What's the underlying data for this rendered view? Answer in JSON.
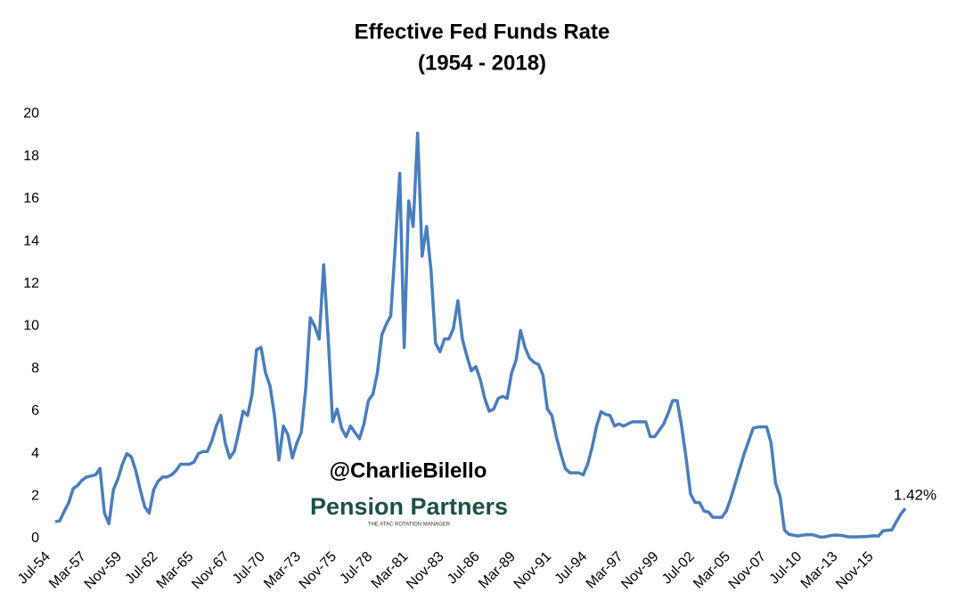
{
  "chart_data": {
    "type": "line",
    "title": "Effective Fed Funds Rate",
    "subtitle": "(1954 - 2018)",
    "annotation": "1.42%",
    "watermark": "@CharlieBilello",
    "logo": "Pension Partners",
    "logo_tagline": "THE ATAC ROTATION MANAGER",
    "categories": [
      "Jul-54",
      null,
      null,
      null,
      null,
      null,
      null,
      null,
      "Mar-57",
      null,
      null,
      null,
      null,
      null,
      null,
      null,
      "Nov-59",
      null,
      null,
      null,
      null,
      null,
      null,
      null,
      "Jul-62",
      null,
      null,
      null,
      null,
      null,
      null,
      null,
      "Mar-65",
      null,
      null,
      null,
      null,
      null,
      null,
      null,
      "Nov-67",
      null,
      null,
      null,
      null,
      null,
      null,
      null,
      "Jul-70",
      null,
      null,
      null,
      null,
      null,
      null,
      null,
      "Mar-73",
      null,
      null,
      null,
      null,
      null,
      null,
      null,
      "Nov-75",
      null,
      null,
      null,
      null,
      null,
      null,
      null,
      "Jul-78",
      null,
      null,
      null,
      null,
      null,
      null,
      null,
      "Mar-81",
      null,
      null,
      null,
      null,
      null,
      null,
      null,
      "Nov-83",
      null,
      null,
      null,
      null,
      null,
      null,
      null,
      "Jul-86",
      null,
      null,
      null,
      null,
      null,
      null,
      null,
      "Mar-89",
      null,
      null,
      null,
      null,
      null,
      null,
      null,
      "Nov-91",
      null,
      null,
      null,
      null,
      null,
      null,
      null,
      "Jul-94",
      null,
      null,
      null,
      null,
      null,
      null,
      null,
      "Mar-97",
      null,
      null,
      null,
      null,
      null,
      null,
      null,
      "Nov-99",
      null,
      null,
      null,
      null,
      null,
      null,
      null,
      "Jul-02",
      null,
      null,
      null,
      null,
      null,
      null,
      null,
      "Mar-05",
      null,
      null,
      null,
      null,
      null,
      null,
      null,
      "Nov-07",
      null,
      null,
      null,
      null,
      null,
      null,
      null,
      "Jul-10",
      null,
      null,
      null,
      null,
      null,
      null,
      null,
      "Mar-13",
      null,
      null,
      null,
      null,
      null,
      null,
      null,
      "Nov-15",
      null,
      null,
      null,
      null,
      null,
      null
    ],
    "series": [
      {
        "name": "Effective Fed Funds Rate",
        "color": "#4a7ebb",
        "values": [
          0.8,
          0.83,
          1.28,
          1.68,
          2.35,
          2.5,
          2.75,
          2.9,
          2.95,
          3.0,
          3.3,
          1.2,
          0.7,
          2.3,
          2.8,
          3.5,
          4.0,
          3.85,
          3.2,
          2.3,
          1.5,
          1.2,
          2.3,
          2.7,
          2.9,
          2.9,
          3.0,
          3.2,
          3.5,
          3.5,
          3.5,
          3.6,
          4.0,
          4.1,
          4.1,
          4.6,
          5.3,
          5.8,
          4.5,
          3.8,
          4.1,
          5.0,
          6.0,
          5.8,
          6.8,
          8.9,
          9.0,
          7.8,
          7.2,
          5.8,
          3.7,
          5.3,
          4.9,
          3.8,
          4.5,
          5.0,
          7.1,
          10.4,
          10.0,
          9.4,
          12.9,
          9.5,
          5.5,
          6.1,
          5.2,
          4.8,
          5.3,
          5.0,
          4.7,
          5.4,
          6.5,
          6.8,
          7.8,
          9.6,
          10.1,
          10.5,
          13.8,
          17.2,
          9.0,
          15.9,
          14.7,
          19.1,
          13.3,
          14.7,
          12.6,
          9.2,
          8.8,
          9.4,
          9.4,
          9.9,
          11.2,
          9.4,
          8.6,
          7.9,
          8.1,
          7.5,
          6.6,
          6.0,
          6.1,
          6.6,
          6.7,
          6.6,
          7.8,
          8.4,
          9.8,
          9.0,
          8.5,
          8.3,
          8.2,
          7.7,
          6.1,
          5.8,
          4.8,
          4.0,
          3.3,
          3.1,
          3.1,
          3.1,
          3.0,
          3.5,
          4.3,
          5.3,
          5.98,
          5.85,
          5.8,
          5.3,
          5.4,
          5.3,
          5.4,
          5.5,
          5.5,
          5.5,
          5.5,
          4.8,
          4.8,
          5.1,
          5.4,
          5.9,
          6.5,
          6.5,
          5.3,
          3.8,
          2.1,
          1.7,
          1.7,
          1.3,
          1.25,
          1.0,
          1.0,
          1.0,
          1.3,
          1.9,
          2.6,
          3.3,
          4.0,
          4.6,
          5.2,
          5.25,
          5.26,
          5.26,
          4.5,
          2.6,
          2.0,
          0.4,
          0.2,
          0.16,
          0.12,
          0.16,
          0.18,
          0.19,
          0.14,
          0.07,
          0.08,
          0.13,
          0.16,
          0.16,
          0.14,
          0.09,
          0.08,
          0.08,
          0.09,
          0.09,
          0.11,
          0.13,
          0.12,
          0.36,
          0.39,
          0.41,
          0.79,
          1.15,
          1.42
        ]
      }
    ],
    "ylim": [
      0,
      20
    ],
    "yticks": [
      0,
      2,
      4,
      6,
      8,
      10,
      12,
      14,
      16,
      18,
      20
    ],
    "grid": false
  }
}
